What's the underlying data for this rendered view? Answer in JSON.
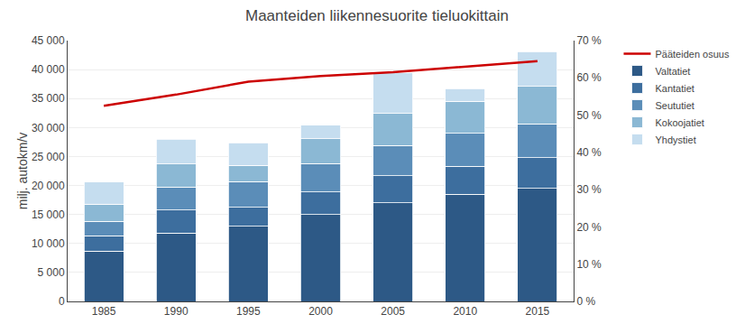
{
  "chart_data": {
    "type": "bar",
    "stacked": true,
    "title": "Maanteiden liikennesuorite tieluokittain",
    "ylabel": "milj. autokm/v",
    "categories": [
      "1985",
      "1990",
      "1995",
      "2000",
      "2005",
      "2010",
      "2015"
    ],
    "series": [
      {
        "name": "Valtatiet",
        "color": "#2d5986",
        "values": [
          8700,
          11800,
          13000,
          15000,
          17000,
          18500,
          19500
        ]
      },
      {
        "name": "Kantatiet",
        "color": "#3d6e9e",
        "values": [
          2600,
          4000,
          3200,
          3900,
          4700,
          4800,
          5300
        ]
      },
      {
        "name": "Seututiet",
        "color": "#5b8db8",
        "values": [
          2500,
          3900,
          4500,
          4900,
          5200,
          5700,
          5800
        ]
      },
      {
        "name": "Kokoojatiet",
        "color": "#8bb8d4",
        "values": [
          3000,
          4000,
          2800,
          4300,
          5500,
          5500,
          6500
        ]
      },
      {
        "name": "Yhdystiet",
        "color": "#c5ddef",
        "values": [
          3800,
          4300,
          3900,
          2300,
          7000,
          2200,
          6000
        ]
      },
      {
        "name": "Pääteiden osuus",
        "type": "line",
        "axis": "y2",
        "color": "#cc0000",
        "values": [
          52.5,
          55.5,
          59.0,
          60.5,
          61.5,
          63.0,
          64.5
        ]
      }
    ],
    "ylim": [
      0,
      45000
    ],
    "yticks": [
      0,
      {
        "value": 5000,
        "label": "5 000"
      },
      {
        "value": 10000,
        "label": "10 000"
      },
      {
        "value": 15000,
        "label": "15 000"
      },
      {
        "value": 20000,
        "label": "20 000"
      },
      {
        "value": 25000,
        "label": "25 000"
      },
      {
        "value": 30000,
        "label": "30 000"
      },
      {
        "value": 35000,
        "label": "35 000"
      },
      {
        "value": 40000,
        "label": "40 000"
      },
      {
        "value": 45000,
        "label": "45 000"
      }
    ],
    "y2lim": [
      0,
      70
    ],
    "y2ticks": [
      {
        "value": 0,
        "label": "0 %"
      },
      {
        "value": 10,
        "label": "10 %"
      },
      {
        "value": 20,
        "label": "20 %"
      },
      {
        "value": 30,
        "label": "30 %"
      },
      {
        "value": 40,
        "label": "40 %"
      },
      {
        "value": 50,
        "label": "50 %"
      },
      {
        "value": 60,
        "label": "60 %"
      },
      {
        "value": 70,
        "label": "70 %"
      }
    ],
    "grid": true,
    "legend": "right"
  }
}
